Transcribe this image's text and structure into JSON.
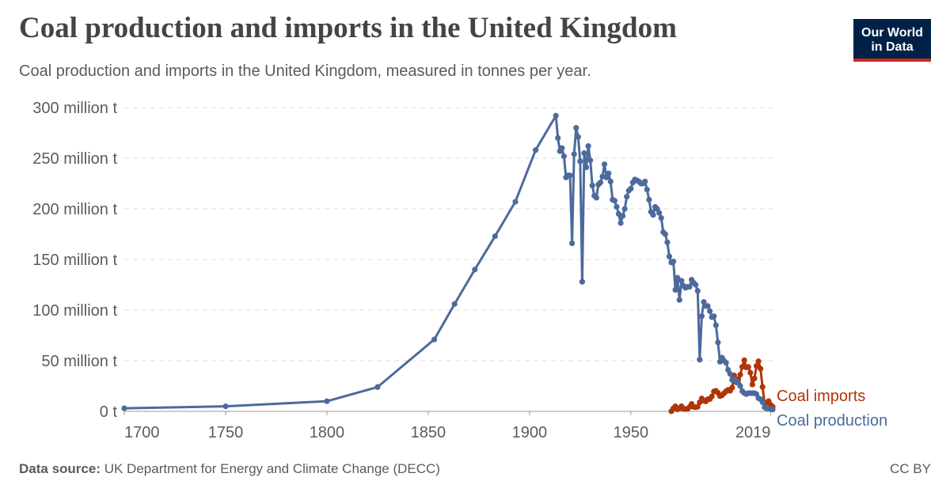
{
  "chart_data": {
    "type": "line",
    "title": "Coal production and imports in the United Kingdom",
    "subtitle": "Coal production and imports in the United Kingdom, measured in tonnes per year.",
    "xlim": [
      1700,
      2020
    ],
    "xticks": [
      1700,
      1750,
      1800,
      1850,
      1900,
      1950,
      2019
    ],
    "ylim": [
      0,
      300000000.0
    ],
    "yticks": [
      {
        "value": 0,
        "label": "0 t"
      },
      {
        "value": 50000000.0,
        "label": "50 million t"
      },
      {
        "value": 100000000.0,
        "label": "100 million t"
      },
      {
        "value": 150000000.0,
        "label": "150 million t"
      },
      {
        "value": 200000000.0,
        "label": "200 million t"
      },
      {
        "value": 250000000.0,
        "label": "250 million t"
      },
      {
        "value": 300000000.0,
        "label": "300 million t"
      }
    ],
    "grid": true,
    "series": [
      {
        "name": "Coal imports",
        "color": "#b13507",
        "x": [
          1970,
          1971,
          1972,
          1973,
          1974,
          1975,
          1976,
          1977,
          1978,
          1979,
          1980,
          1981,
          1982,
          1983,
          1984,
          1985,
          1986,
          1987,
          1988,
          1989,
          1990,
          1991,
          1992,
          1993,
          1994,
          1995,
          1996,
          1997,
          1998,
          1999,
          2000,
          2001,
          2002,
          2003,
          2004,
          2005,
          2006,
          2007,
          2008,
          2009,
          2010,
          2011,
          2012,
          2013,
          2014,
          2015,
          2016,
          2017,
          2018,
          2019,
          2020
        ],
        "values": [
          100000.0,
          3000000.0,
          5000000.0,
          2000000.0,
          3000000.0,
          5000000.0,
          2500000.0,
          2400000.0,
          2400000.0,
          4400000.0,
          7300000.0,
          4300000.0,
          4100000.0,
          4500000.0,
          8900000.0,
          12700000.0,
          10600000.0,
          9800000.0,
          12000000.0,
          12100000.0,
          14800000.0,
          19600000.0,
          20300000.0,
          18400000.0,
          15100000.0,
          15900000.0,
          17800000.0,
          19800000.0,
          21200000.0,
          20300000.0,
          23400000.0,
          35500000.0,
          28700000.0,
          31900000.0,
          36200000.0,
          44000000.0,
          50500000.0,
          43400000.0,
          43900000.0,
          38200000.0,
          26500000.0,
          32500000.0,
          44800000.0,
          49400000.0,
          42200000.0,
          24100000.0,
          8500000.0,
          8500000.0,
          10100000.0,
          6500000.0,
          4500000.0
        ]
      },
      {
        "name": "Coal production",
        "color": "#4c6a9c",
        "x": [
          1700,
          1750,
          1800,
          1825,
          1853,
          1863,
          1873,
          1883,
          1893,
          1903,
          1913,
          1914,
          1915,
          1916,
          1917,
          1918,
          1919,
          1920,
          1921,
          1922,
          1923,
          1924,
          1925,
          1926,
          1927,
          1928,
          1929,
          1930,
          1931,
          1932,
          1933,
          1934,
          1935,
          1936,
          1937,
          1938,
          1939,
          1940,
          1941,
          1942,
          1943,
          1944,
          1945,
          1946,
          1947,
          1948,
          1949,
          1950,
          1951,
          1952,
          1953,
          1954,
          1955,
          1956,
          1957,
          1958,
          1959,
          1960,
          1961,
          1962,
          1963,
          1964,
          1965,
          1966,
          1967,
          1968,
          1969,
          1970,
          1971,
          1972,
          1973,
          1974,
          1975,
          1976,
          1977,
          1978,
          1979,
          1980,
          1981,
          1982,
          1983,
          1984,
          1985,
          1986,
          1987,
          1988,
          1989,
          1990,
          1991,
          1992,
          1993,
          1994,
          1995,
          1996,
          1997,
          1998,
          1999,
          2000,
          2001,
          2002,
          2003,
          2004,
          2005,
          2006,
          2007,
          2008,
          2009,
          2010,
          2011,
          2012,
          2013,
          2014,
          2015,
          2016,
          2017,
          2018,
          2019,
          2020
        ],
        "values": [
          3000000.0,
          5000000.0,
          10000000.0,
          24000000.0,
          71000000.0,
          106000000.0,
          140000000.0,
          173000000.0,
          207000000.0,
          258000000.0,
          292000000.0,
          270000000.0,
          257000000.0,
          260000000.0,
          252000000.0,
          231000000.0,
          233000000.0,
          233000000.0,
          166000000.0,
          254000000.0,
          280000000.0,
          271000000.0,
          247000000.0,
          128000000.0,
          255000000.0,
          241000000.0,
          262000000.0,
          248000000.0,
          223000000.0,
          213000000.0,
          211000000.0,
          224000000.0,
          226000000.0,
          232000000.0,
          244000000.0,
          231000000.0,
          235000000.0,
          227000000.0,
          209000000.0,
          208000000.0,
          202000000.0,
          195000000.0,
          186000000.0,
          193000000.0,
          200000000.0,
          212000000.0,
          218000000.0,
          220000000.0,
          226000000.0,
          229000000.0,
          228000000.0,
          227000000.0,
          225000000.0,
          225000000.0,
          227000000.0,
          219000000.0,
          209000000.0,
          197000000.0,
          194000000.0,
          202000000.0,
          200000000.0,
          196000000.0,
          191000000.0,
          177000000.0,
          175000000.0,
          167000000.0,
          153000000.0,
          147000000.0,
          148000000.0,
          120000000.0,
          132000000.0,
          110000000.0,
          129000000.0,
          124000000.0,
          122000000.0,
          123000000.0,
          123000000.0,
          130000000.0,
          127000000.0,
          125000000.0,
          119000000.0,
          51000000.0,
          94000000.0,
          108000000.0,
          104000000.0,
          104000000.0,
          99000000.0,
          93000000.0,
          94000000.0,
          85000000.0,
          68000000.0,
          49000000.0,
          53000000.0,
          50000000.0,
          48000000.0,
          41000000.0,
          37000000.0,
          31000000.0,
          32000000.0,
          30000000.0,
          28000000.0,
          25000000.0,
          20000000.0,
          18000000.0,
          17000000.0,
          18000000.0,
          18000000.0,
          18000000.0,
          18000000.0,
          17000000.0,
          13000000.0,
          12000000.0,
          9000000.0,
          4000000.0,
          3000000.0,
          2600000.0,
          2200000.0,
          1800000.0
        ]
      }
    ]
  },
  "logo": [
    "Our World",
    "in Data"
  ],
  "footer": {
    "source_label": "Data source:",
    "source": "UK Department for Energy and Climate Change (DECC)",
    "license": "CC BY"
  }
}
